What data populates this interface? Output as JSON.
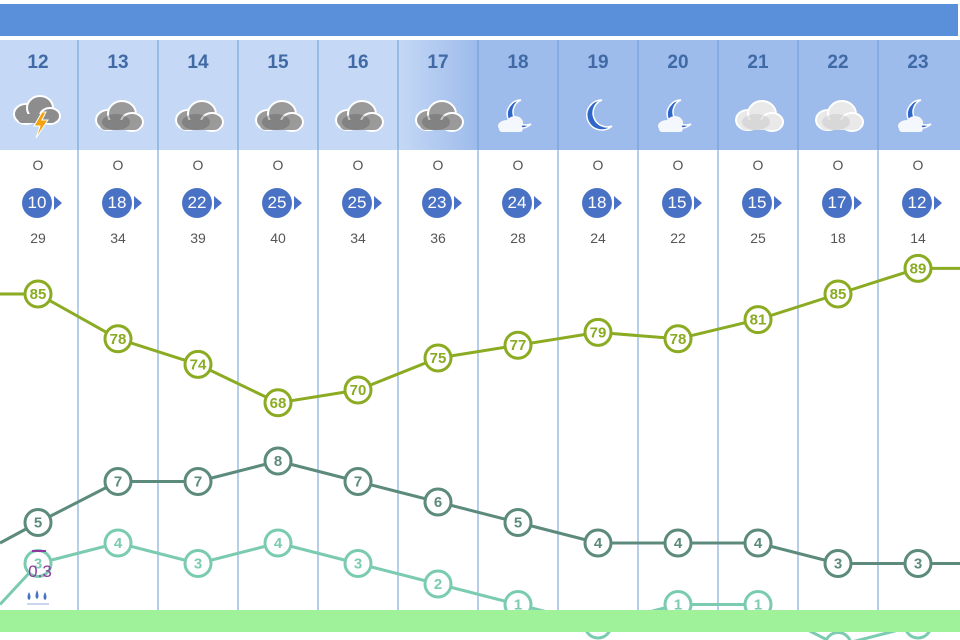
{
  "chart_data": {
    "type": "line",
    "x": [
      "12",
      "13",
      "14",
      "15",
      "16",
      "17",
      "18",
      "19",
      "20",
      "21",
      "22",
      "23"
    ],
    "icons": [
      "thunder-cloud-icon",
      "cloud-icon",
      "cloud-icon",
      "cloud-icon",
      "cloud-icon",
      "cloud-icon",
      "moon-cloud-icon",
      "moon-icon",
      "moon-cloud-icon",
      "cloud-icon",
      "cloud-icon",
      "moon-cloud-icon"
    ],
    "wind_direction": [
      "O",
      "O",
      "O",
      "O",
      "O",
      "O",
      "O",
      "O",
      "O",
      "O",
      "O",
      "O"
    ],
    "wind_speed": [
      10,
      18,
      22,
      25,
      25,
      23,
      24,
      18,
      15,
      15,
      17,
      12
    ],
    "wind_gust": [
      29,
      34,
      39,
      40,
      34,
      36,
      28,
      24,
      22,
      25,
      18,
      14
    ],
    "series": [
      {
        "key": "humidity",
        "values": [
          85,
          78,
          74,
          68,
          70,
          75,
          77,
          79,
          78,
          81,
          85,
          89
        ],
        "color": "#8aab22",
        "lead": 85,
        "tail": 89
      },
      {
        "key": "temperature",
        "values": [
          5,
          7,
          7,
          8,
          7,
          6,
          5,
          4,
          4,
          4,
          3,
          3
        ],
        "color": "#5c8a7c",
        "lead": 4,
        "tail": 3
      },
      {
        "key": "feels_like",
        "values": [
          3,
          4,
          3,
          4,
          3,
          2,
          1,
          0,
          1,
          1,
          -1,
          0
        ],
        "color": "#7bcbb0",
        "lead": 1,
        "tail": 0
      }
    ],
    "precipitation": {
      "index": 0,
      "value": "0.3"
    },
    "colors": {
      "top_bar": "#5a8fda",
      "header_day": "#c5d8f5",
      "header_night": "#9dbbeb",
      "wind": "#4a72c4",
      "precip": "#8e3a9e",
      "bottom_strip": "#9ff19a"
    }
  }
}
